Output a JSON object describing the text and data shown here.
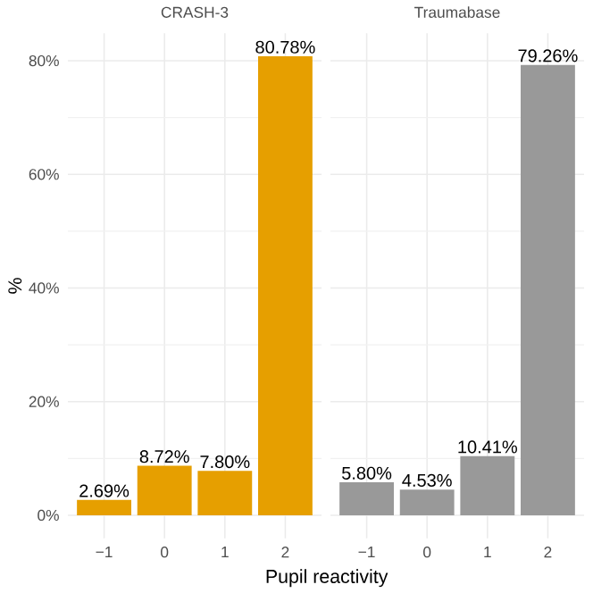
{
  "chart_data": [
    {
      "type": "bar",
      "title": "CRASH-3",
      "xlabel": "Pupil reactivity",
      "ylabel": "%",
      "categories": [
        "−1",
        "0",
        "1",
        "2"
      ],
      "values": [
        2.69,
        8.72,
        7.8,
        80.78
      ],
      "color": "#e69f00",
      "value_labels": [
        "2.69%",
        "8.72%",
        "7.80%",
        "80.78%"
      ],
      "ylim": [
        -4.04,
        84.82
      ],
      "yticks": [
        {
          "value": 0,
          "label": "0%"
        },
        {
          "value": 20,
          "label": "20%"
        },
        {
          "value": 40,
          "label": "40%"
        },
        {
          "value": 60,
          "label": "60%"
        },
        {
          "value": 80,
          "label": "80%"
        }
      ],
      "grid": true
    },
    {
      "type": "bar",
      "title": "Traumabase",
      "categories": [
        "−1",
        "0",
        "1",
        "2"
      ],
      "values": [
        5.8,
        4.53,
        10.41,
        79.26
      ],
      "color": "#999999",
      "value_labels": [
        "5.80%",
        "4.53%",
        "10.41%",
        "79.26%"
      ],
      "ylim": [
        -4.04,
        84.82
      ],
      "yticks": [
        {
          "value": 0,
          "label": null
        },
        {
          "value": 20,
          "label": null
        },
        {
          "value": 40,
          "label": null
        },
        {
          "value": 60,
          "label": null
        },
        {
          "value": 80,
          "label": null
        }
      ],
      "grid": true,
      "tick_labels": "x"
    }
  ]
}
